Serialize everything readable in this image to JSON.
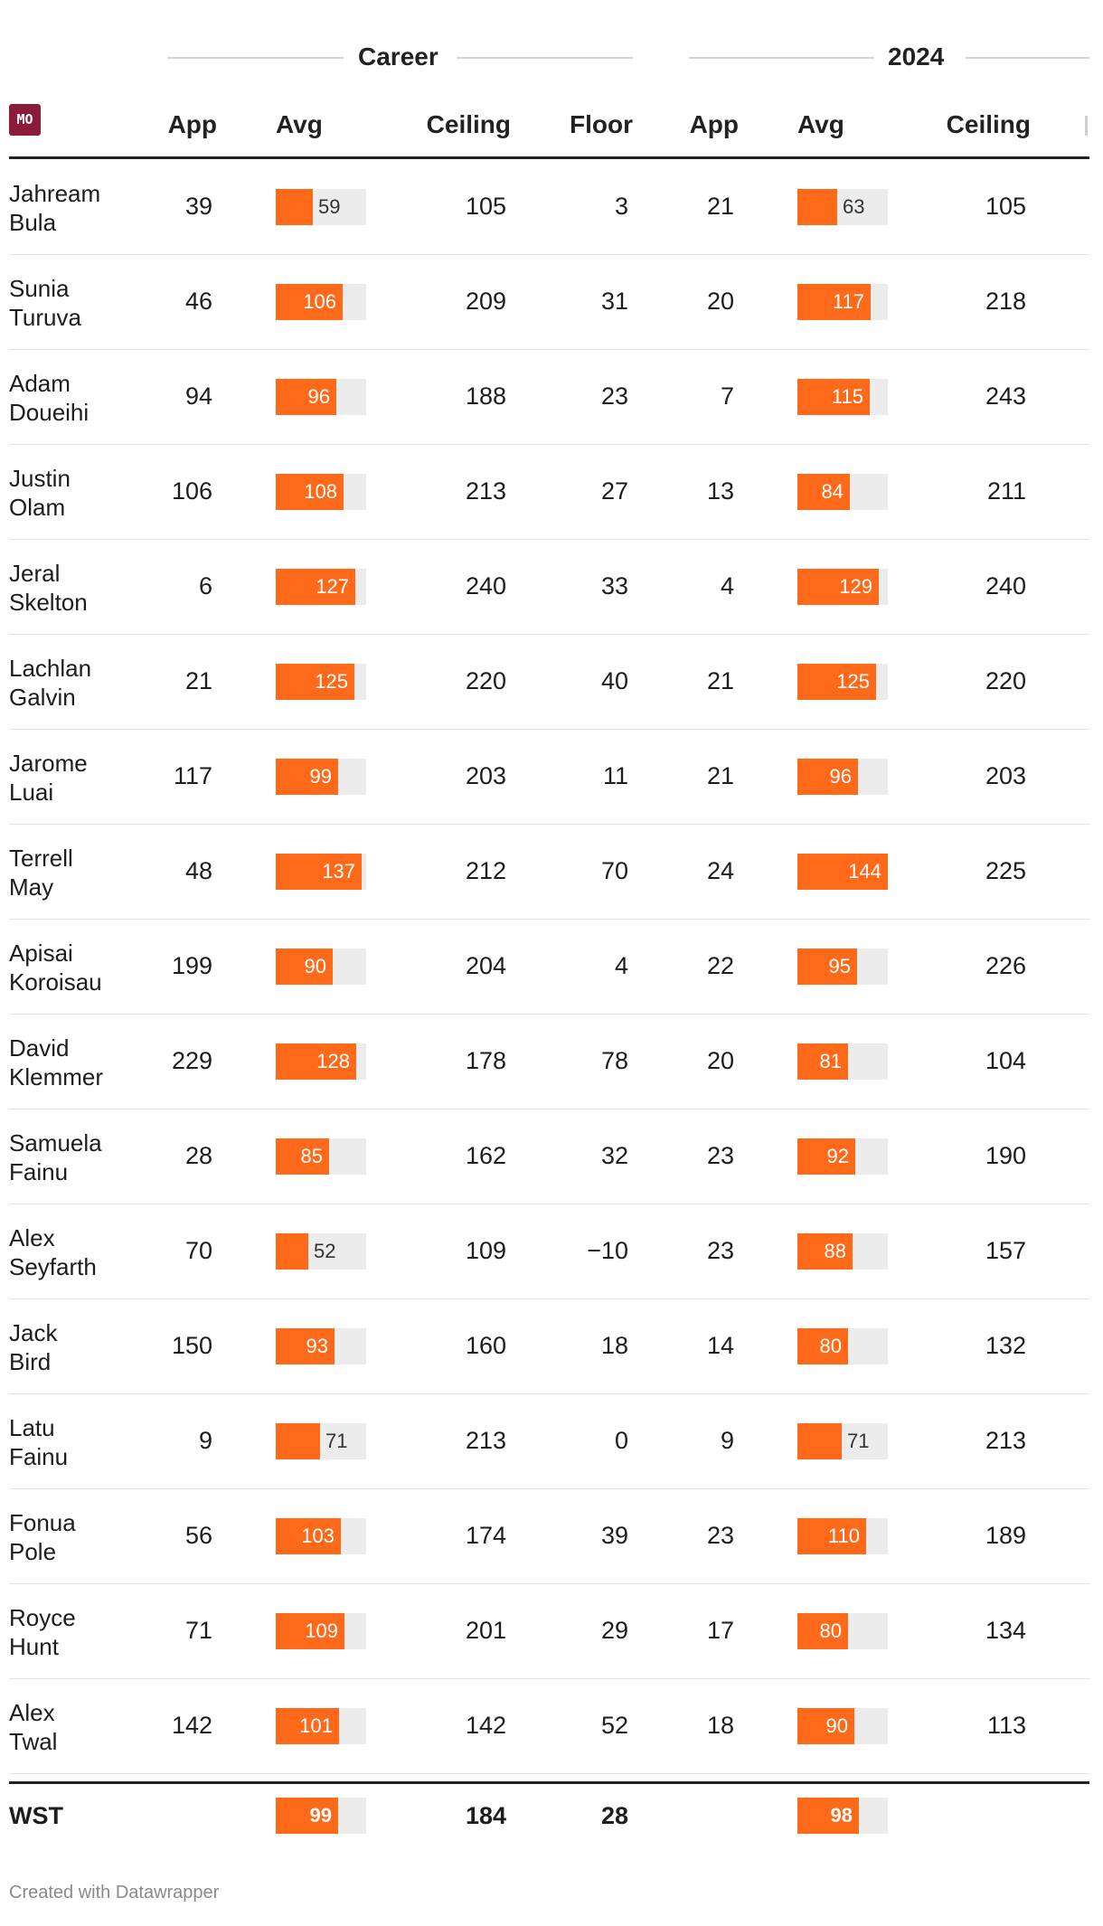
{
  "header": {
    "group_career": "Career",
    "group_2024": "2024",
    "logo_text": "MO",
    "columns": [
      "App",
      "Avg",
      "Ceiling",
      "Floor",
      "App",
      "Avg",
      "Ceiling"
    ]
  },
  "colors": {
    "bar": "#ff6a1a",
    "track": "#ececec",
    "logo": "#8c1a3a"
  },
  "chart_data": {
    "type": "table",
    "bar_max": 144,
    "rows": [
      {
        "name": "Jahream Bula",
        "career_app": "39",
        "career_avg": 59,
        "career_ceiling": "105",
        "career_floor": "3",
        "y2024_app": "21",
        "y2024_avg": 63,
        "y2024_ceiling": "105"
      },
      {
        "name": "Sunia Turuva",
        "career_app": "46",
        "career_avg": 106,
        "career_ceiling": "209",
        "career_floor": "31",
        "y2024_app": "20",
        "y2024_avg": 117,
        "y2024_ceiling": "218"
      },
      {
        "name": "Adam Doueihi",
        "career_app": "94",
        "career_avg": 96,
        "career_ceiling": "188",
        "career_floor": "23",
        "y2024_app": "7",
        "y2024_avg": 115,
        "y2024_ceiling": "243"
      },
      {
        "name": "Justin Olam",
        "career_app": "106",
        "career_avg": 108,
        "career_ceiling": "213",
        "career_floor": "27",
        "y2024_app": "13",
        "y2024_avg": 84,
        "y2024_ceiling": "211"
      },
      {
        "name": "Jeral Skelton",
        "career_app": "6",
        "career_avg": 127,
        "career_ceiling": "240",
        "career_floor": "33",
        "y2024_app": "4",
        "y2024_avg": 129,
        "y2024_ceiling": "240"
      },
      {
        "name": "Lachlan Galvin",
        "career_app": "21",
        "career_avg": 125,
        "career_ceiling": "220",
        "career_floor": "40",
        "y2024_app": "21",
        "y2024_avg": 125,
        "y2024_ceiling": "220"
      },
      {
        "name": "Jarome Luai",
        "career_app": "117",
        "career_avg": 99,
        "career_ceiling": "203",
        "career_floor": "11",
        "y2024_app": "21",
        "y2024_avg": 96,
        "y2024_ceiling": "203"
      },
      {
        "name": "Terrell May",
        "career_app": "48",
        "career_avg": 137,
        "career_ceiling": "212",
        "career_floor": "70",
        "y2024_app": "24",
        "y2024_avg": 144,
        "y2024_ceiling": "225"
      },
      {
        "name": "Apisai Koroisau",
        "career_app": "199",
        "career_avg": 90,
        "career_ceiling": "204",
        "career_floor": "4",
        "y2024_app": "22",
        "y2024_avg": 95,
        "y2024_ceiling": "226"
      },
      {
        "name": "David Klemmer",
        "career_app": "229",
        "career_avg": 128,
        "career_ceiling": "178",
        "career_floor": "78",
        "y2024_app": "20",
        "y2024_avg": 81,
        "y2024_ceiling": "104"
      },
      {
        "name": "Samuela Fainu",
        "career_app": "28",
        "career_avg": 85,
        "career_ceiling": "162",
        "career_floor": "32",
        "y2024_app": "23",
        "y2024_avg": 92,
        "y2024_ceiling": "190"
      },
      {
        "name": "Alex Seyfarth",
        "career_app": "70",
        "career_avg": 52,
        "career_ceiling": "109",
        "career_floor": "−10",
        "y2024_app": "23",
        "y2024_avg": 88,
        "y2024_ceiling": "157"
      },
      {
        "name": "Jack Bird",
        "career_app": "150",
        "career_avg": 93,
        "career_ceiling": "160",
        "career_floor": "18",
        "y2024_app": "14",
        "y2024_avg": 80,
        "y2024_ceiling": "132"
      },
      {
        "name": "Latu Fainu",
        "career_app": "9",
        "career_avg": 71,
        "career_ceiling": "213",
        "career_floor": "0",
        "y2024_app": "9",
        "y2024_avg": 71,
        "y2024_ceiling": "213"
      },
      {
        "name": "Fonua Pole",
        "career_app": "56",
        "career_avg": 103,
        "career_ceiling": "174",
        "career_floor": "39",
        "y2024_app": "23",
        "y2024_avg": 110,
        "y2024_ceiling": "189"
      },
      {
        "name": "Royce Hunt",
        "career_app": "71",
        "career_avg": 109,
        "career_ceiling": "201",
        "career_floor": "29",
        "y2024_app": "17",
        "y2024_avg": 80,
        "y2024_ceiling": "134"
      },
      {
        "name": "Alex Twal",
        "career_app": "142",
        "career_avg": 101,
        "career_ceiling": "142",
        "career_floor": "52",
        "y2024_app": "18",
        "y2024_avg": 90,
        "y2024_ceiling": "113"
      }
    ],
    "total": {
      "name": "WST",
      "career_avg": 99,
      "career_ceiling": "184",
      "career_floor": "28",
      "y2024_avg": 98
    }
  },
  "footer": {
    "credit": "Created with Datawrapper"
  }
}
